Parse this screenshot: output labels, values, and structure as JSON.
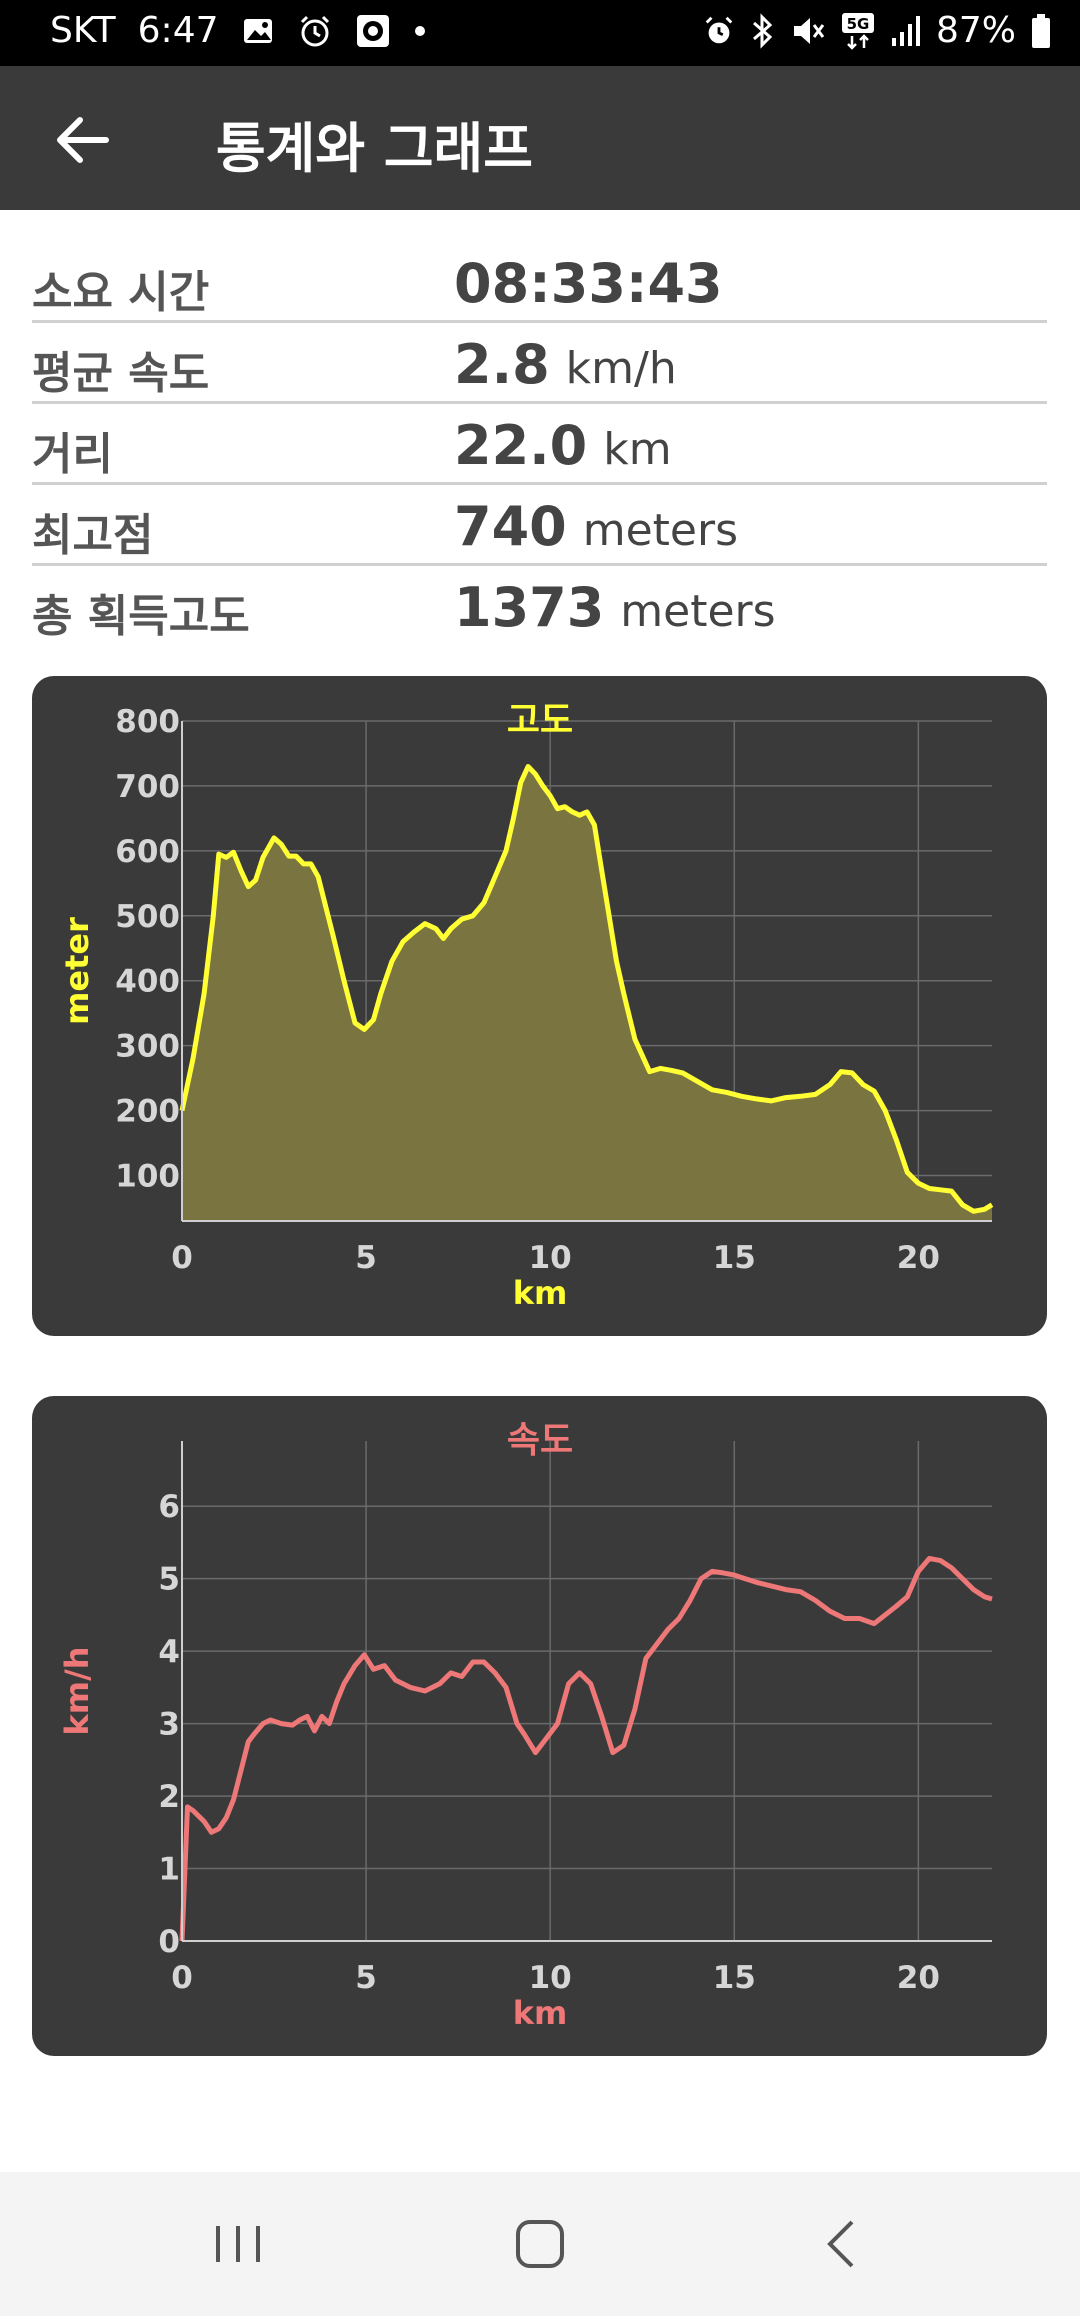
{
  "status_bar": {
    "carrier": "SKT",
    "time": "6:47",
    "battery": "87%",
    "left_icons": [
      "image-icon",
      "alarm-icon",
      "record-icon",
      "dot-icon"
    ],
    "right_icons": [
      "alarm-icon",
      "bluetooth-icon",
      "mute-icon",
      "5g-icon",
      "signal-icon",
      "battery-icon"
    ]
  },
  "app_bar": {
    "title": "통계와 그래프",
    "back_icon": "arrow-left-icon"
  },
  "stats": [
    {
      "label": "소요 시간",
      "value": "08:33:43",
      "unit": ""
    },
    {
      "label": "평균 속도",
      "value": "2.8",
      "unit": "km/h"
    },
    {
      "label": "거리",
      "value": "22.0",
      "unit": "km"
    },
    {
      "label": "최고점",
      "value": "740",
      "unit": "meters"
    },
    {
      "label": "총 획득고도",
      "value": "1373",
      "unit": "meters"
    }
  ],
  "chart_data": [
    {
      "type": "area",
      "title": "고도",
      "xlabel": "km",
      "ylabel": "meter",
      "color": "#ffff33",
      "fill": "#7a7440",
      "xlim": [
        0,
        22
      ],
      "ylim": [
        30,
        800
      ],
      "xticks": [
        0,
        5,
        10,
        15,
        20
      ],
      "yticks": [
        100,
        200,
        300,
        400,
        500,
        600,
        700,
        800
      ],
      "grid": true,
      "x": [
        0,
        0.3,
        0.6,
        0.85,
        1.0,
        1.2,
        1.4,
        1.6,
        1.8,
        2.0,
        2.2,
        2.5,
        2.7,
        2.9,
        3.1,
        3.3,
        3.5,
        3.7,
        3.9,
        4.1,
        4.4,
        4.7,
        4.95,
        5.2,
        5.4,
        5.7,
        6.0,
        6.3,
        6.6,
        6.9,
        7.1,
        7.3,
        7.6,
        7.9,
        8.2,
        8.5,
        8.8,
        9.0,
        9.2,
        9.4,
        9.6,
        9.8,
        10.0,
        10.2,
        10.4,
        10.6,
        10.8,
        11.0,
        11.2,
        11.4,
        11.6,
        11.8,
        12.0,
        12.3,
        12.7,
        13.0,
        13.3,
        13.6,
        14.0,
        14.4,
        14.8,
        15.2,
        15.6,
        16.0,
        16.4,
        16.8,
        17.2,
        17.6,
        17.9,
        18.2,
        18.5,
        18.8,
        19.1,
        19.4,
        19.7,
        20.0,
        20.3,
        20.6,
        20.9,
        21.2,
        21.5,
        21.8,
        22.0
      ],
      "y": [
        200,
        280,
        380,
        500,
        595,
        590,
        598,
        570,
        545,
        555,
        590,
        620,
        610,
        592,
        592,
        580,
        580,
        560,
        515,
        470,
        400,
        335,
        325,
        340,
        380,
        430,
        460,
        475,
        488,
        480,
        465,
        480,
        495,
        500,
        520,
        560,
        600,
        650,
        705,
        730,
        718,
        700,
        685,
        665,
        668,
        660,
        655,
        660,
        640,
        570,
        500,
        430,
        380,
        310,
        260,
        265,
        262,
        258,
        245,
        232,
        228,
        222,
        218,
        215,
        220,
        222,
        225,
        240,
        260,
        258,
        240,
        230,
        200,
        155,
        105,
        88,
        80,
        78,
        76,
        55,
        45,
        48,
        55
      ]
    },
    {
      "type": "line",
      "title": "속도",
      "xlabel": "km",
      "ylabel": "km/h",
      "color": "#ee7777",
      "xlim": [
        0,
        22
      ],
      "ylim": [
        0,
        6.9
      ],
      "xticks": [
        0,
        5,
        10,
        15,
        20
      ],
      "yticks": [
        0,
        1,
        2,
        3,
        4,
        5,
        6
      ],
      "grid": true,
      "x": [
        0,
        0.15,
        0.3,
        0.6,
        0.8,
        1.0,
        1.2,
        1.4,
        1.6,
        1.8,
        1.95,
        2.2,
        2.4,
        2.7,
        3.0,
        3.2,
        3.4,
        3.6,
        3.8,
        4.0,
        4.2,
        4.4,
        4.7,
        4.95,
        5.2,
        5.5,
        5.8,
        6.2,
        6.6,
        7.0,
        7.3,
        7.6,
        7.9,
        8.2,
        8.5,
        8.8,
        9.1,
        9.3,
        9.6,
        9.9,
        10.2,
        10.5,
        10.8,
        11.1,
        11.4,
        11.7,
        12.0,
        12.3,
        12.6,
        12.9,
        13.2,
        13.5,
        13.8,
        14.1,
        14.4,
        14.7,
        15.0,
        15.3,
        15.6,
        16.0,
        16.4,
        16.8,
        17.2,
        17.6,
        18.0,
        18.4,
        18.8,
        19.1,
        19.4,
        19.7,
        20.0,
        20.3,
        20.6,
        20.9,
        21.2,
        21.5,
        21.8,
        22.0
      ],
      "y": [
        0.0,
        1.85,
        1.8,
        1.65,
        1.5,
        1.55,
        1.7,
        1.95,
        2.35,
        2.75,
        2.85,
        3.0,
        3.05,
        3.0,
        2.98,
        3.05,
        3.1,
        2.9,
        3.1,
        3.0,
        3.3,
        3.55,
        3.8,
        3.95,
        3.75,
        3.8,
        3.6,
        3.5,
        3.45,
        3.55,
        3.7,
        3.65,
        3.85,
        3.85,
        3.7,
        3.5,
        3.0,
        2.85,
        2.6,
        2.8,
        3.0,
        3.55,
        3.7,
        3.55,
        3.1,
        2.6,
        2.7,
        3.2,
        3.9,
        4.1,
        4.3,
        4.45,
        4.7,
        5.0,
        5.1,
        5.08,
        5.05,
        5.0,
        4.95,
        4.9,
        4.85,
        4.82,
        4.7,
        4.55,
        4.45,
        4.45,
        4.38,
        4.5,
        4.62,
        4.75,
        5.1,
        5.28,
        5.25,
        5.15,
        5.0,
        4.85,
        4.75,
        4.72
      ]
    }
  ],
  "nav_bar": {
    "icons": [
      "recent-apps-icon",
      "home-icon",
      "back-nav-icon"
    ]
  }
}
